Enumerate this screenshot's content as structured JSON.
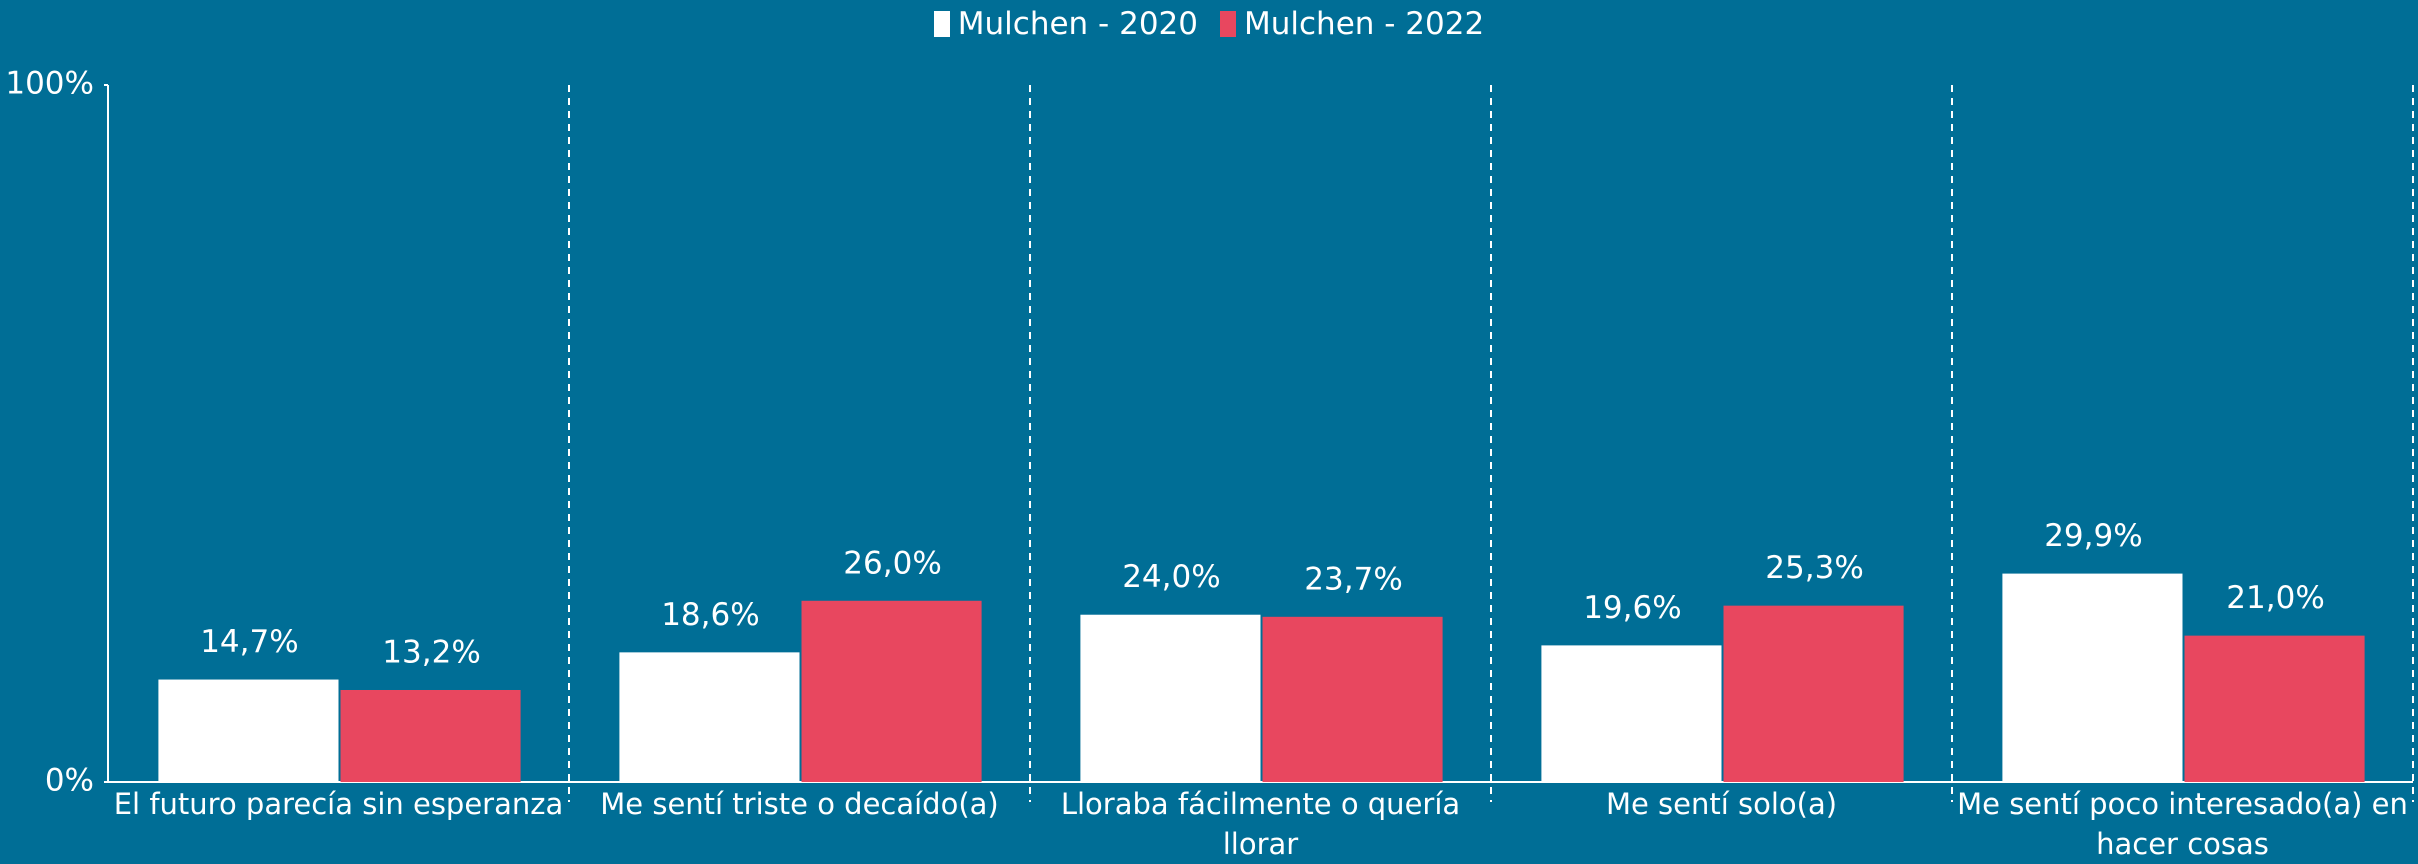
{
  "chart_data": {
    "type": "bar",
    "categories": [
      "El futuro parecía sin esperanza",
      "Me sentí triste o decaído(a)",
      "Lloraba fácilmente o quería llorar",
      "Me sentí solo(a)",
      "Me sentí poco interesado(a) en hacer cosas"
    ],
    "series": [
      {
        "name": "Mulchen - 2020",
        "color": "#ffffff",
        "values": [
          14.7,
          18.6,
          24.0,
          19.6,
          29.9
        ],
        "value_labels": [
          "14,7%",
          "18,6%",
          "24,0%",
          "19,6%",
          "29,9%"
        ]
      },
      {
        "name": "Mulchen - 2022",
        "color": "#e8475f",
        "values": [
          13.2,
          26.0,
          23.7,
          25.3,
          21.0
        ],
        "value_labels": [
          "13,2%",
          "26,0%",
          "23,7%",
          "25,3%",
          "21,0%"
        ]
      }
    ],
    "ylim": [
      0,
      100
    ],
    "yticks": [
      {
        "value": 0,
        "label": "0%"
      },
      {
        "value": 100,
        "label": "100%"
      }
    ],
    "legend": "top"
  }
}
